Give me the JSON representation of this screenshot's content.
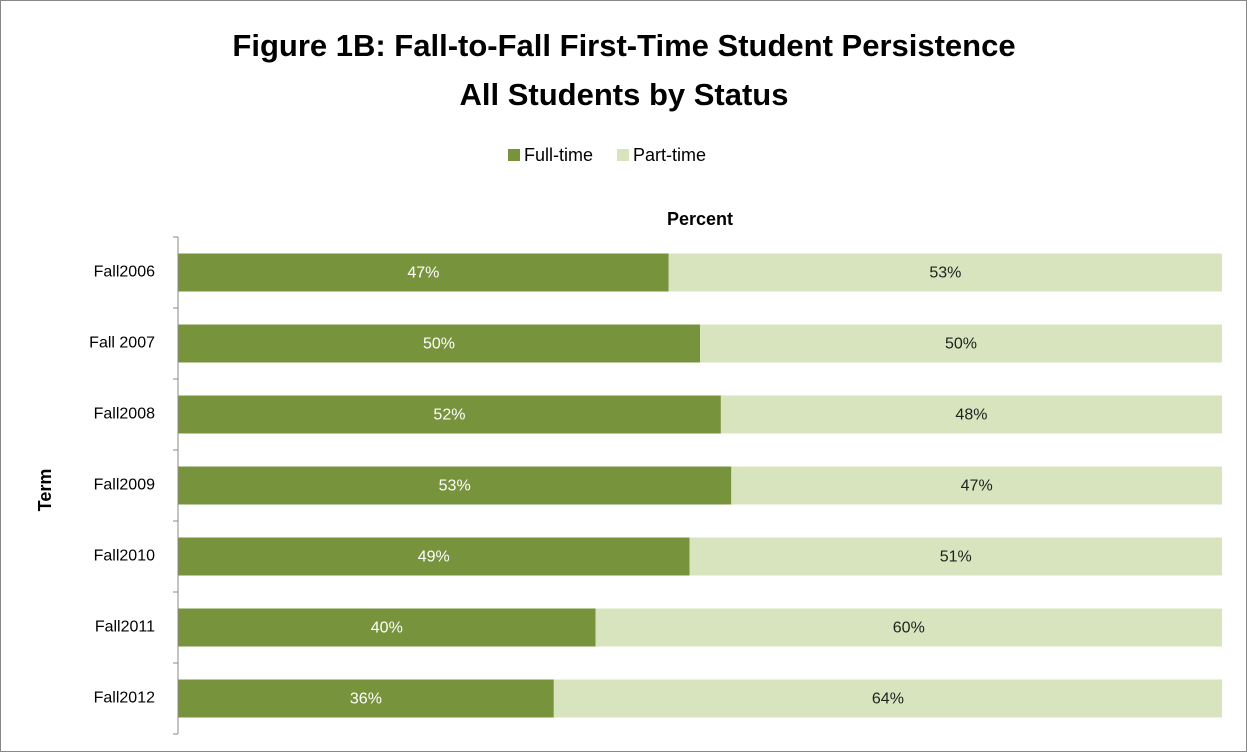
{
  "chart_data": {
    "type": "stacked-bar-horizontal",
    "title": [
      "Figure 1B: Fall-to-Fall First-Time Student Persistence",
      "All Students by Status"
    ],
    "x_label": "Percent",
    "y_label": "Term",
    "categories": [
      "Fall2006",
      "Fall 2007",
      "Fall2008",
      "Fall2009",
      "Fall2010",
      "Fall2011",
      "Fall2012"
    ],
    "xlim": [
      0,
      100
    ],
    "legend": "top",
    "series": [
      {
        "name": "Full-time",
        "color": "#77933c",
        "label_color": "#ffffff",
        "values": [
          47,
          50,
          52,
          53,
          49,
          40,
          36
        ],
        "value_labels": [
          "47%",
          "50%",
          "52%",
          "53%",
          "49%",
          "40%",
          "36%"
        ]
      },
      {
        "name": "Part-time",
        "color": "#d7e4bd",
        "label_color": "#222222",
        "values": [
          53,
          50,
          48,
          47,
          51,
          60,
          64
        ],
        "value_labels": [
          "53%",
          "50%",
          "48%",
          "47%",
          "51%",
          "60%",
          "64%"
        ]
      }
    ]
  }
}
